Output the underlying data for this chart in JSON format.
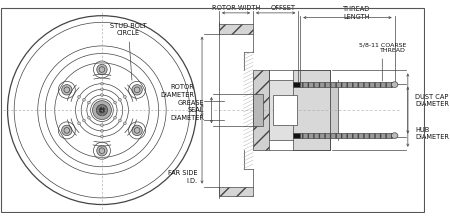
{
  "bg_color": "#ffffff",
  "line_color": "#444444",
  "dark_color": "#111111",
  "gray_light": "#cccccc",
  "gray_mid": "#aaaaaa",
  "gray_dark": "#666666",
  "hatch_gray": "#999999",
  "labels": {
    "stud_bolt_circle": "STUD BOLT\nCIRCLE",
    "rotor_diameter": "ROTOR\nDIAMETER",
    "rotor_width": "ROTOR WIDTH",
    "offset": "OFFSET",
    "thread_length": "THREAD\nLENGTH",
    "thread_spec": "5/8-11 COARSE\nTHREAD",
    "grease_seal": "GREASE\nSEAL\nDIAMETER",
    "dust_cap": "DUST CAP\nDIAMETER",
    "far_side_id": "FAR SIDE\nI.D.",
    "hub_diameter": "HUB\nDIAMETER"
  },
  "font_size": 4.8
}
